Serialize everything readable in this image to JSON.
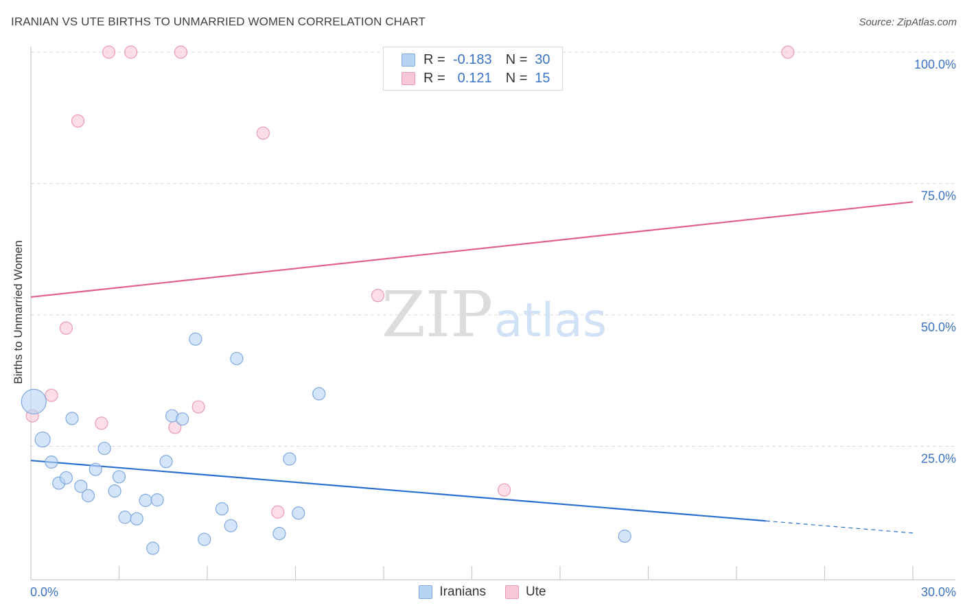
{
  "header": {
    "title": "IRANIAN VS UTE BIRTHS TO UNMARRIED WOMEN CORRELATION CHART",
    "source": "Source: ZipAtlas.com"
  },
  "watermark": {
    "zip": "ZIP",
    "atlas": "atlas"
  },
  "legend": {
    "rows": [
      {
        "r_label": "R =",
        "r_value": "-0.183",
        "n_label": "N =",
        "n_value": "30"
      },
      {
        "r_label": "R =",
        "r_value": "0.121",
        "n_label": "N =",
        "n_value": "15"
      }
    ]
  },
  "colors": {
    "iranians_fill": "#b8d4f5",
    "iranians_stroke": "#7fa8e0",
    "iranians_line": "#2a6fcf",
    "ute_fill": "#f9c8d6",
    "ute_stroke": "#ec9ab4",
    "ute_line": "#e0608a",
    "axis_text": "#3a72c4",
    "grid": "#d9d9d9"
  },
  "chart_data": {
    "type": "scatter",
    "title": "IRANIAN VS UTE BIRTHS TO UNMARRIED WOMEN CORRELATION CHART",
    "xlabel": "",
    "ylabel": "Births to Unmarried Women",
    "xlim": [
      0,
      30
    ],
    "ylim": [
      0,
      100
    ],
    "x_tick_labels": [
      "0.0%",
      "30.0%"
    ],
    "y_ticks": [
      25,
      50,
      75,
      100
    ],
    "y_tick_labels": [
      "25.0%",
      "50.0%",
      "75.0%",
      "100.0%"
    ],
    "grid": true,
    "series": [
      {
        "name": "Iranians",
        "color": "#b8d4f5",
        "line_color": "#2a6fcf",
        "trend": {
          "x0": 0,
          "y0": 22.3,
          "x1": 25.0,
          "y1": 10.8,
          "dashed_to_x": 30,
          "dashed_to_y": 8.5
        },
        "points": [
          {
            "x": 0.1,
            "y": 33.5,
            "size": 18
          },
          {
            "x": 0.4,
            "y": 26.3,
            "size": 11
          },
          {
            "x": 0.7,
            "y": 22.0,
            "size": 9
          },
          {
            "x": 0.95,
            "y": 18.0,
            "size": 9
          },
          {
            "x": 1.2,
            "y": 19.0,
            "size": 9
          },
          {
            "x": 1.4,
            "y": 30.3,
            "size": 9
          },
          {
            "x": 1.7,
            "y": 17.4,
            "size": 9
          },
          {
            "x": 1.95,
            "y": 15.6,
            "size": 9
          },
          {
            "x": 2.2,
            "y": 20.6,
            "size": 9
          },
          {
            "x": 2.5,
            "y": 24.6,
            "size": 9
          },
          {
            "x": 2.85,
            "y": 16.5,
            "size": 9
          },
          {
            "x": 3.0,
            "y": 19.2,
            "size": 9
          },
          {
            "x": 3.2,
            "y": 11.5,
            "size": 9
          },
          {
            "x": 3.6,
            "y": 11.2,
            "size": 9
          },
          {
            "x": 3.9,
            "y": 14.7,
            "size": 9
          },
          {
            "x": 4.15,
            "y": 5.6,
            "size": 9
          },
          {
            "x": 4.3,
            "y": 14.8,
            "size": 9
          },
          {
            "x": 4.6,
            "y": 22.1,
            "size": 9
          },
          {
            "x": 4.8,
            "y": 30.8,
            "size": 9
          },
          {
            "x": 5.15,
            "y": 30.2,
            "size": 9
          },
          {
            "x": 5.6,
            "y": 45.4,
            "size": 9
          },
          {
            "x": 5.9,
            "y": 7.3,
            "size": 9
          },
          {
            "x": 6.5,
            "y": 13.1,
            "size": 9
          },
          {
            "x": 6.8,
            "y": 9.9,
            "size": 9
          },
          {
            "x": 7.0,
            "y": 41.7,
            "size": 9
          },
          {
            "x": 8.45,
            "y": 8.4,
            "size": 9
          },
          {
            "x": 8.8,
            "y": 22.6,
            "size": 9
          },
          {
            "x": 9.1,
            "y": 12.3,
            "size": 9
          },
          {
            "x": 9.8,
            "y": 35.0,
            "size": 9
          },
          {
            "x": 20.2,
            "y": 7.9,
            "size": 9
          }
        ]
      },
      {
        "name": "Ute",
        "color": "#f9c8d6",
        "line_color": "#e0608a",
        "trend": {
          "x0": 0,
          "y0": 53.4,
          "x1": 30,
          "y1": 71.5
        },
        "points": [
          {
            "x": 0.05,
            "y": 30.8,
            "size": 9
          },
          {
            "x": 0.7,
            "y": 34.7,
            "size": 9
          },
          {
            "x": 1.2,
            "y": 47.5,
            "size": 9
          },
          {
            "x": 1.6,
            "y": 86.9,
            "size": 9
          },
          {
            "x": 2.4,
            "y": 29.4,
            "size": 9
          },
          {
            "x": 2.65,
            "y": 100.0,
            "size": 9
          },
          {
            "x": 3.4,
            "y": 100.0,
            "size": 9
          },
          {
            "x": 4.9,
            "y": 28.6,
            "size": 9
          },
          {
            "x": 5.1,
            "y": 100.0,
            "size": 9
          },
          {
            "x": 5.7,
            "y": 32.5,
            "size": 9
          },
          {
            "x": 7.9,
            "y": 84.6,
            "size": 9
          },
          {
            "x": 8.4,
            "y": 12.5,
            "size": 9
          },
          {
            "x": 11.8,
            "y": 53.7,
            "size": 9
          },
          {
            "x": 16.1,
            "y": 16.7,
            "size": 9
          },
          {
            "x": 25.75,
            "y": 100.0,
            "size": 9
          }
        ]
      }
    ]
  }
}
